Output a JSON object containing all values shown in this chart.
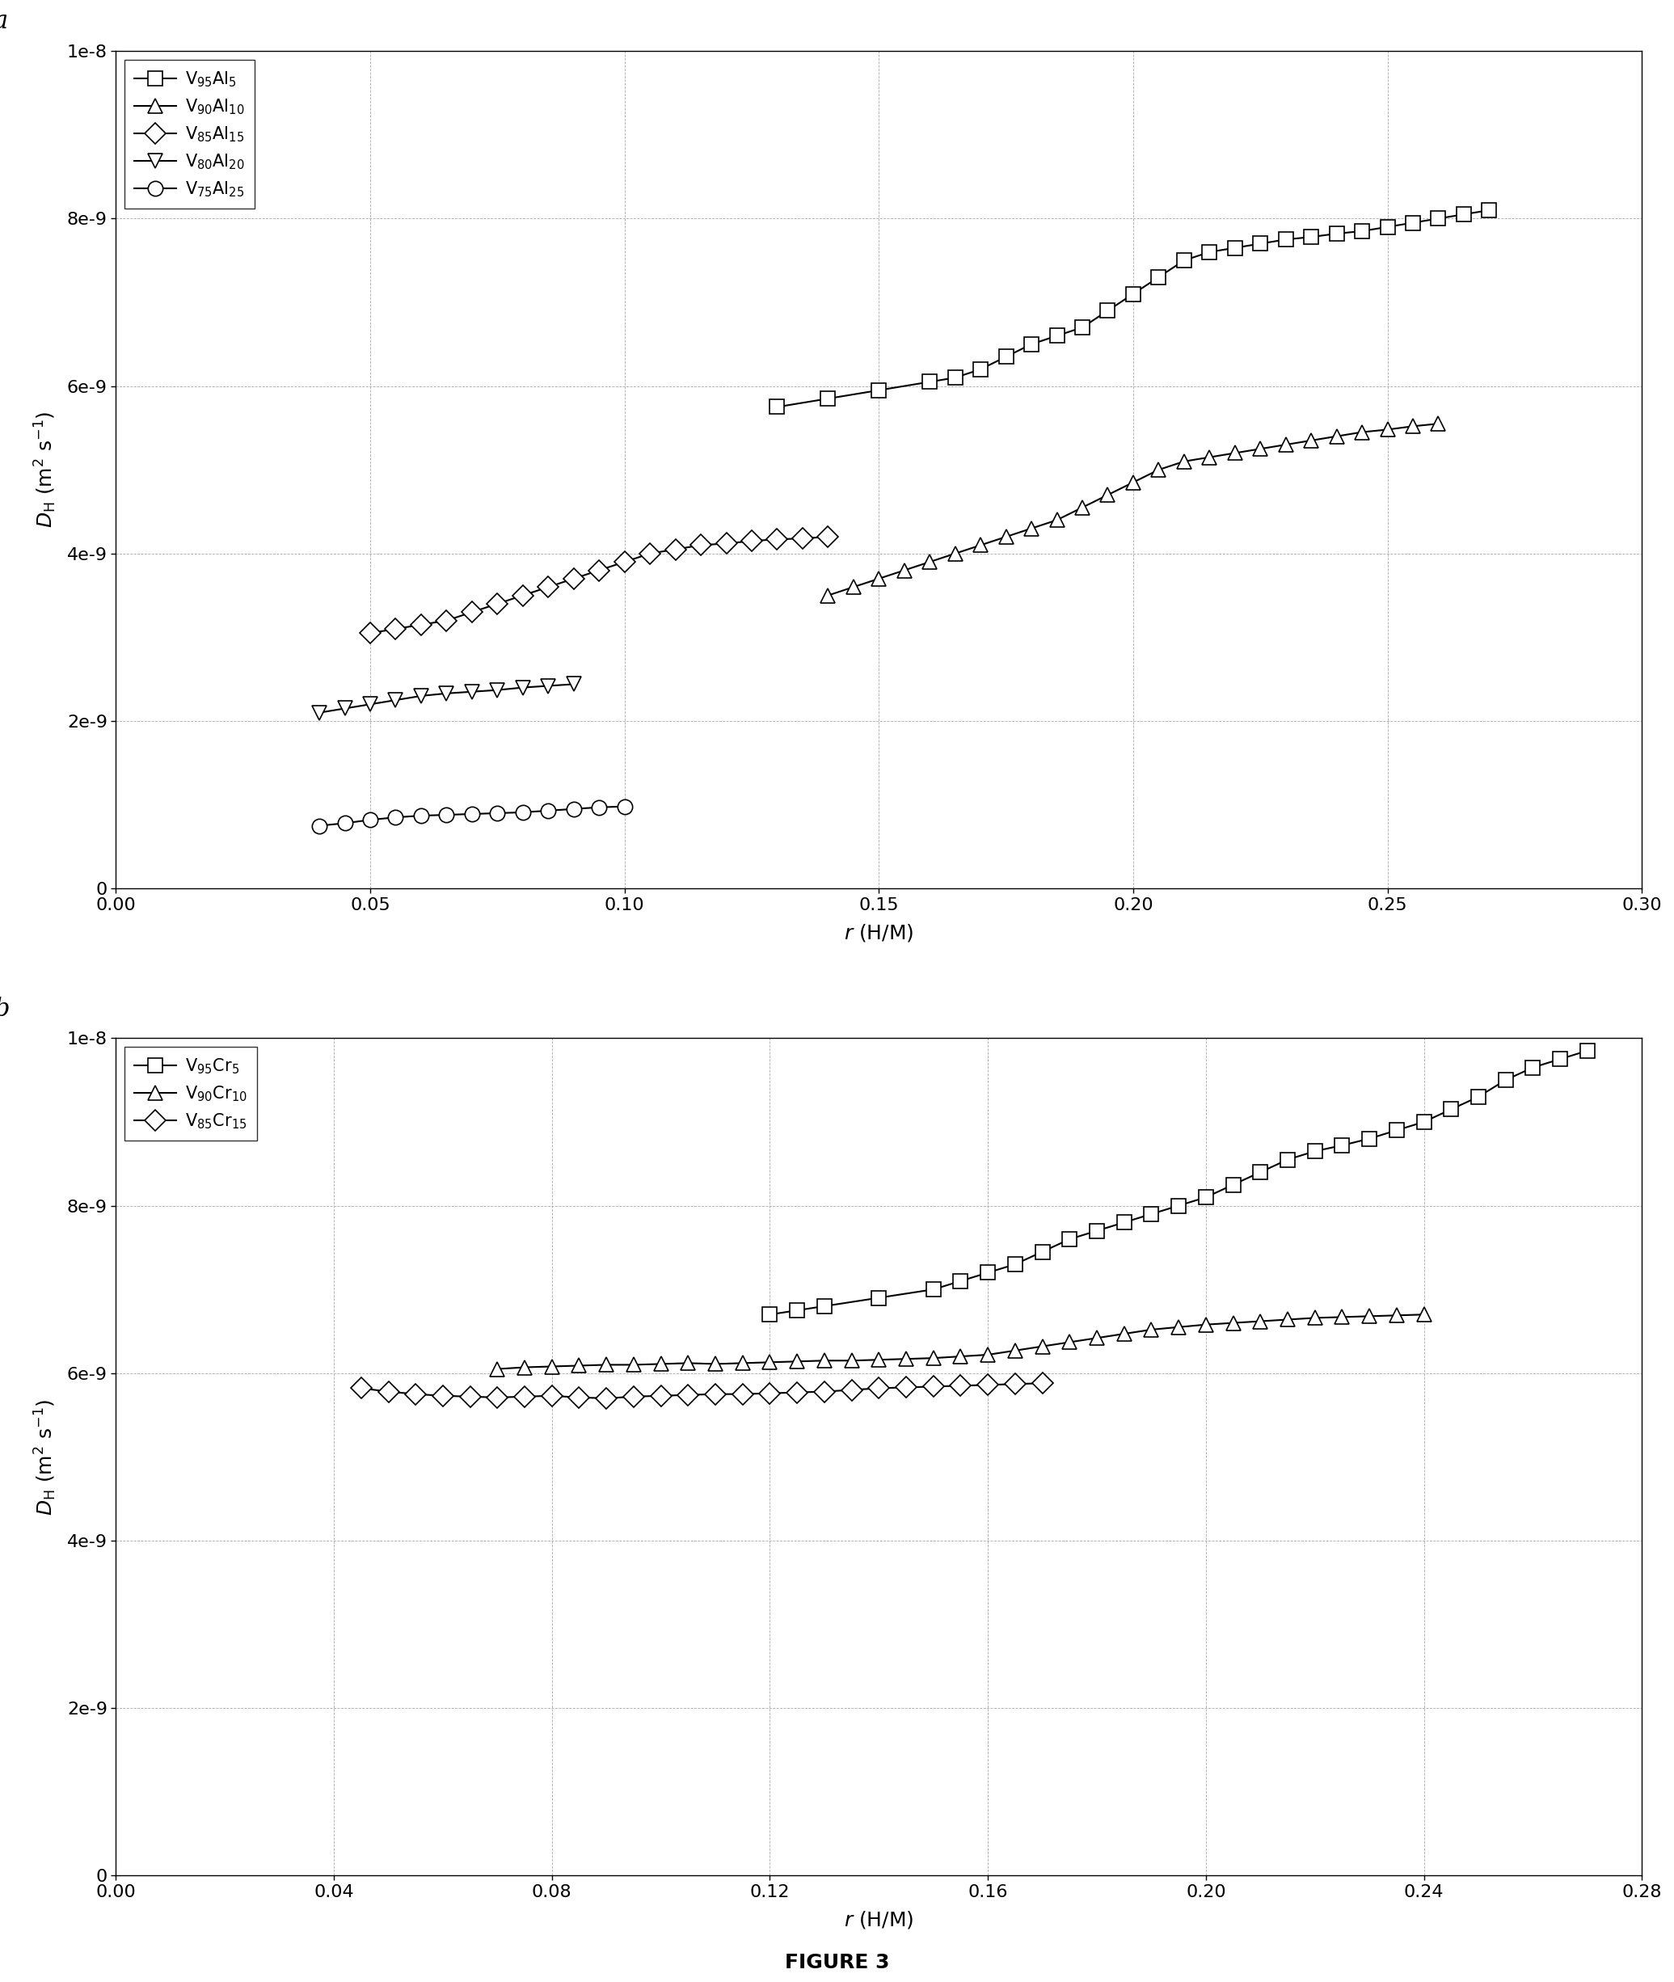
{
  "panel_a": {
    "title_label": "a",
    "ylabel": "$D_{\\mathrm{H}}$ (m$^2$ s$^{-1}$)",
    "xlabel": "$r$ (H/M)",
    "xlim": [
      0.0,
      0.3
    ],
    "ylim": [
      0,
      1e-08
    ],
    "yticks": [
      0,
      2e-09,
      4e-09,
      6e-09,
      8e-09,
      1e-08
    ],
    "ytick_labels": [
      "0",
      "2e-9",
      "4e-9",
      "6e-9",
      "8e-9",
      "1e-8"
    ],
    "xticks": [
      0.0,
      0.05,
      0.1,
      0.15,
      0.2,
      0.25,
      0.3
    ],
    "xtick_labels": [
      "0.00",
      "0.05",
      "0.10",
      "0.15",
      "0.20",
      "0.25",
      "0.30"
    ],
    "series": [
      {
        "label": "V$_{95}$Al$_5$",
        "marker": "s",
        "r": [
          0.13,
          0.14,
          0.15,
          0.16,
          0.165,
          0.17,
          0.175,
          0.18,
          0.185,
          0.19,
          0.195,
          0.2,
          0.205,
          0.21,
          0.215,
          0.22,
          0.225,
          0.23,
          0.235,
          0.24,
          0.245,
          0.25,
          0.255,
          0.26,
          0.265,
          0.27
        ],
        "D": [
          5.75e-09,
          5.85e-09,
          5.95e-09,
          6.05e-09,
          6.1e-09,
          6.2e-09,
          6.35e-09,
          6.5e-09,
          6.6e-09,
          6.7e-09,
          6.9e-09,
          7.1e-09,
          7.3e-09,
          7.5e-09,
          7.6e-09,
          7.65e-09,
          7.7e-09,
          7.75e-09,
          7.78e-09,
          7.82e-09,
          7.85e-09,
          7.9e-09,
          7.95e-09,
          8e-09,
          8.05e-09,
          8.1e-09
        ]
      },
      {
        "label": "V$_{90}$Al$_{10}$",
        "marker": "^",
        "r": [
          0.14,
          0.145,
          0.15,
          0.155,
          0.16,
          0.165,
          0.17,
          0.175,
          0.18,
          0.185,
          0.19,
          0.195,
          0.2,
          0.205,
          0.21,
          0.215,
          0.22,
          0.225,
          0.23,
          0.235,
          0.24,
          0.245,
          0.25,
          0.255,
          0.26
        ],
        "D": [
          3.5e-09,
          3.6e-09,
          3.7e-09,
          3.8e-09,
          3.9e-09,
          4e-09,
          4.1e-09,
          4.2e-09,
          4.3e-09,
          4.4e-09,
          4.55e-09,
          4.7e-09,
          4.85e-09,
          5e-09,
          5.1e-09,
          5.15e-09,
          5.2e-09,
          5.25e-09,
          5.3e-09,
          5.35e-09,
          5.4e-09,
          5.45e-09,
          5.48e-09,
          5.52e-09,
          5.55e-09
        ]
      },
      {
        "label": "V$_{85}$Al$_{15}$",
        "marker": "D",
        "r": [
          0.05,
          0.055,
          0.06,
          0.065,
          0.07,
          0.075,
          0.08,
          0.085,
          0.09,
          0.095,
          0.1,
          0.105,
          0.11,
          0.115,
          0.12,
          0.125,
          0.13,
          0.135,
          0.14
        ],
        "D": [
          3.05e-09,
          3.1e-09,
          3.15e-09,
          3.2e-09,
          3.3e-09,
          3.4e-09,
          3.5e-09,
          3.6e-09,
          3.7e-09,
          3.8e-09,
          3.9e-09,
          4e-09,
          4.05e-09,
          4.1e-09,
          4.12e-09,
          4.15e-09,
          4.17e-09,
          4.18e-09,
          4.2e-09
        ]
      },
      {
        "label": "V$_{80}$Al$_{20}$",
        "marker": "v",
        "r": [
          0.04,
          0.045,
          0.05,
          0.055,
          0.06,
          0.065,
          0.07,
          0.075,
          0.08,
          0.085,
          0.09
        ],
        "D": [
          2.1e-09,
          2.15e-09,
          2.2e-09,
          2.25e-09,
          2.3e-09,
          2.33e-09,
          2.35e-09,
          2.37e-09,
          2.4e-09,
          2.42e-09,
          2.44e-09
        ]
      },
      {
        "label": "V$_{75}$Al$_{25}$",
        "marker": "o",
        "r": [
          0.04,
          0.045,
          0.05,
          0.055,
          0.06,
          0.065,
          0.07,
          0.075,
          0.08,
          0.085,
          0.09,
          0.095,
          0.1
        ],
        "D": [
          7.5e-10,
          7.8e-10,
          8.2e-10,
          8.5e-10,
          8.7e-10,
          8.8e-10,
          8.9e-10,
          9e-10,
          9.1e-10,
          9.3e-10,
          9.5e-10,
          9.7e-10,
          9.8e-10
        ]
      }
    ]
  },
  "panel_b": {
    "title_label": "b",
    "ylabel": "$D_{\\mathrm{H}}$ (m$^2$ s$^{-1}$)",
    "xlabel": "$r$ (H/M)",
    "xlim": [
      0.0,
      0.28
    ],
    "ylim": [
      0,
      1e-08
    ],
    "yticks": [
      0,
      2e-09,
      4e-09,
      6e-09,
      8e-09,
      1e-08
    ],
    "ytick_labels": [
      "0",
      "2e-9",
      "4e-9",
      "6e-9",
      "8e-9",
      "1e-8"
    ],
    "xticks": [
      0.0,
      0.04,
      0.08,
      0.12,
      0.16,
      0.2,
      0.24,
      0.28
    ],
    "xtick_labels": [
      "0.00",
      "0.04",
      "0.08",
      "0.12",
      "0.16",
      "0.20",
      "0.24",
      "0.28"
    ],
    "series": [
      {
        "label": "V$_{95}$Cr$_5$",
        "marker": "s",
        "r": [
          0.12,
          0.125,
          0.13,
          0.14,
          0.15,
          0.155,
          0.16,
          0.165,
          0.17,
          0.175,
          0.18,
          0.185,
          0.19,
          0.195,
          0.2,
          0.205,
          0.21,
          0.215,
          0.22,
          0.225,
          0.23,
          0.235,
          0.24,
          0.245,
          0.25,
          0.255,
          0.26,
          0.265,
          0.27
        ],
        "D": [
          6.7e-09,
          6.75e-09,
          6.8e-09,
          6.9e-09,
          7e-09,
          7.1e-09,
          7.2e-09,
          7.3e-09,
          7.45e-09,
          7.6e-09,
          7.7e-09,
          7.8e-09,
          7.9e-09,
          8e-09,
          8.1e-09,
          8.25e-09,
          8.4e-09,
          8.55e-09,
          8.65e-09,
          8.72e-09,
          8.8e-09,
          8.9e-09,
          9e-09,
          9.15e-09,
          9.3e-09,
          9.5e-09,
          9.65e-09,
          9.75e-09,
          9.85e-09
        ]
      },
      {
        "label": "V$_{90}$Cr$_{10}$",
        "marker": "^",
        "r": [
          0.07,
          0.075,
          0.08,
          0.085,
          0.09,
          0.095,
          0.1,
          0.105,
          0.11,
          0.115,
          0.12,
          0.125,
          0.13,
          0.135,
          0.14,
          0.145,
          0.15,
          0.155,
          0.16,
          0.165,
          0.17,
          0.175,
          0.18,
          0.185,
          0.19,
          0.195,
          0.2,
          0.205,
          0.21,
          0.215,
          0.22,
          0.225,
          0.23,
          0.235,
          0.24
        ],
        "D": [
          6.05e-09,
          6.07e-09,
          6.08e-09,
          6.09e-09,
          6.1e-09,
          6.1e-09,
          6.11e-09,
          6.12e-09,
          6.11e-09,
          6.12e-09,
          6.13e-09,
          6.14e-09,
          6.15e-09,
          6.15e-09,
          6.16e-09,
          6.17e-09,
          6.18e-09,
          6.2e-09,
          6.22e-09,
          6.27e-09,
          6.32e-09,
          6.37e-09,
          6.42e-09,
          6.47e-09,
          6.52e-09,
          6.55e-09,
          6.58e-09,
          6.6e-09,
          6.62e-09,
          6.64e-09,
          6.66e-09,
          6.67e-09,
          6.68e-09,
          6.69e-09,
          6.7e-09
        ]
      },
      {
        "label": "V$_{85}$Cr$_{15}$",
        "marker": "D",
        "r": [
          0.045,
          0.05,
          0.055,
          0.06,
          0.065,
          0.07,
          0.075,
          0.08,
          0.085,
          0.09,
          0.095,
          0.1,
          0.105,
          0.11,
          0.115,
          0.12,
          0.125,
          0.13,
          0.135,
          0.14,
          0.145,
          0.15,
          0.155,
          0.16,
          0.165,
          0.17
        ],
        "D": [
          5.82e-09,
          5.78e-09,
          5.75e-09,
          5.73e-09,
          5.72e-09,
          5.71e-09,
          5.72e-09,
          5.73e-09,
          5.71e-09,
          5.7e-09,
          5.72e-09,
          5.73e-09,
          5.74e-09,
          5.75e-09,
          5.75e-09,
          5.76e-09,
          5.77e-09,
          5.78e-09,
          5.8e-09,
          5.82e-09,
          5.83e-09,
          5.84e-09,
          5.85e-09,
          5.86e-09,
          5.87e-09,
          5.88e-09
        ]
      }
    ]
  },
  "figure_label": "FIGURE 3",
  "line_color": "#000000",
  "marker_size": 6,
  "line_width": 1.0,
  "marker_face_color": "white",
  "background_color": "#ffffff",
  "grid_color": "#aaaaaa",
  "grid_linestyle": "--",
  "grid_linewidth": 0.6
}
